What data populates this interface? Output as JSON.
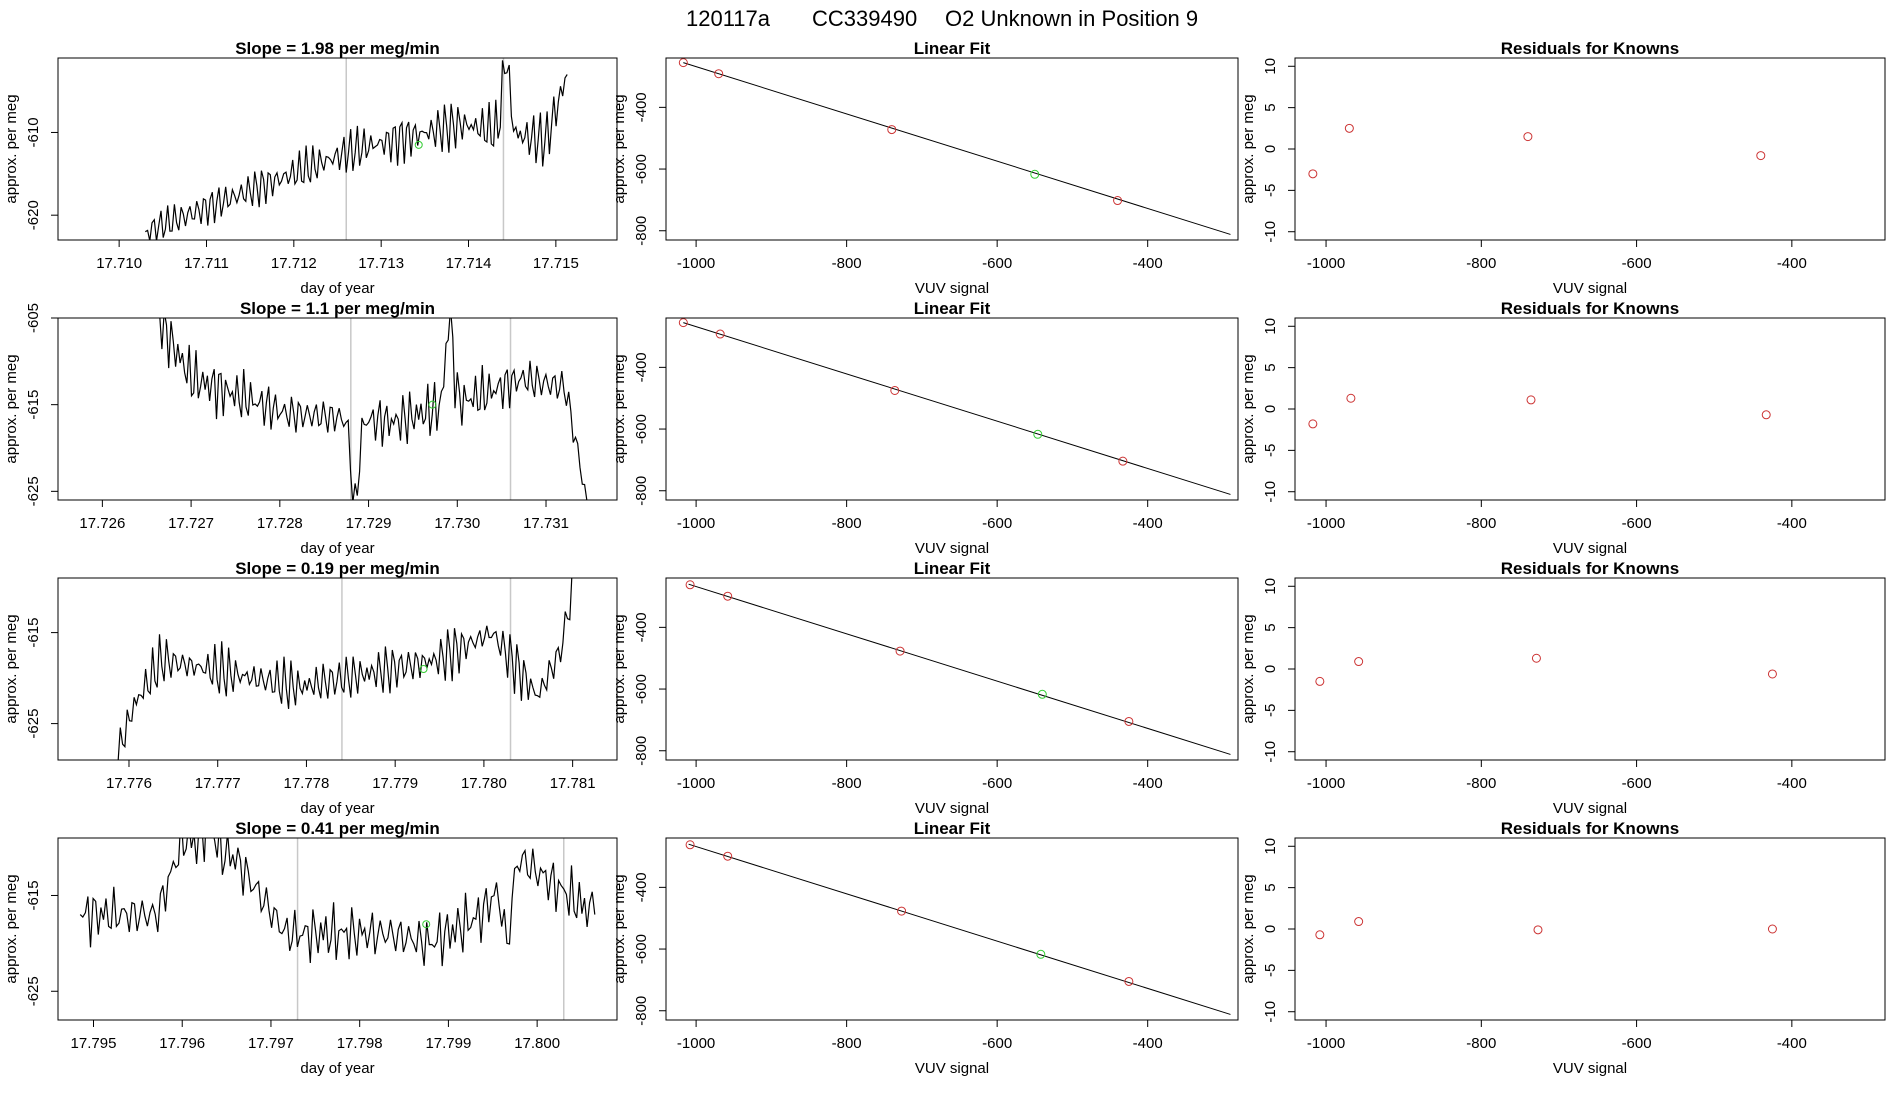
{
  "figure": {
    "run_id": "120117a",
    "cylinder": "CC339490",
    "label": "O2 Unknown in Position  9"
  },
  "colors": {
    "known_point": "#cc3333",
    "unknown_point": "#33cc33",
    "trace_line": "#000000",
    "marker_line": "#c8c8c8",
    "frame": "#000000"
  },
  "chart_data": [
    {
      "type": "line",
      "panel": "time-series",
      "row": 1,
      "title": "Slope =  1.98  per meg/min",
      "xlabel": "day of year",
      "ylabel": "approx. per meg",
      "xlim": [
        17.7093,
        17.7157
      ],
      "ylim": [
        -623,
        -601
      ],
      "xticks": [
        17.71,
        17.711,
        17.712,
        17.713,
        17.714,
        17.715
      ],
      "xtick_labels": [
        "17.710",
        "17.711",
        "17.712",
        "17.713",
        "17.714",
        "17.715"
      ],
      "yticks": [
        -610,
        -620
      ],
      "ytick_labels": [
        "-610",
        "-620"
      ],
      "markers_x": [
        17.7126,
        17.7144
      ],
      "unknown_point": {
        "x": 17.71343,
        "y": -611.5
      },
      "trace": {
        "x_start": 17.7103,
        "x_end": 17.71513,
        "y_start": -623,
        "y_end": -601,
        "n": 190,
        "base": [
          [
            0,
            -622
          ],
          [
            0.25,
            -617
          ],
          [
            0.5,
            -612
          ],
          [
            0.75,
            -609
          ],
          [
            0.95,
            -611
          ],
          [
            1,
            -603
          ]
        ],
        "amp": 3.0,
        "freq": [
          0.62,
          1.77,
          0.39
        ],
        "seed": 1.3,
        "spikes": [
          [
            0.855,
            0.035,
            9
          ]
        ]
      }
    },
    {
      "type": "line",
      "panel": "time-series",
      "row": 2,
      "title": "Slope =  1.1  per meg/min",
      "xlabel": "day of year",
      "ylabel": "approx. per meg",
      "xlim": [
        17.7255,
        17.7318
      ],
      "ylim": [
        -626,
        -605
      ],
      "xticks": [
        17.726,
        17.727,
        17.728,
        17.729,
        17.73,
        17.731
      ],
      "xtick_labels": [
        "17.726",
        "17.727",
        "17.728",
        "17.729",
        "17.730",
        "17.731"
      ],
      "yticks": [
        -605,
        -615,
        -625
      ],
      "ytick_labels": [
        "-605",
        "-615",
        "-625"
      ],
      "markers_x": [
        17.7288,
        17.7306
      ],
      "unknown_point": {
        "x": 17.72972,
        "y": -615
      },
      "trace": {
        "x_start": 17.72662,
        "x_end": 17.73146,
        "y_start": -605,
        "y_end": -626,
        "n": 190,
        "base": [
          [
            0,
            -605
          ],
          [
            0.08,
            -612
          ],
          [
            0.3,
            -616
          ],
          [
            0.55,
            -617
          ],
          [
            0.75,
            -614
          ],
          [
            0.85,
            -612
          ],
          [
            0.95,
            -613
          ],
          [
            1,
            -626
          ]
        ],
        "amp": 2.8,
        "freq": [
          0.58,
          1.69,
          0.41
        ],
        "seed": 2.1,
        "spikes": [
          [
            0.46,
            -0.02,
            -10
          ],
          [
            0.68,
            0.03,
            10
          ]
        ]
      }
    },
    {
      "type": "line",
      "panel": "time-series",
      "row": 3,
      "title": "Slope =  0.19  per meg/min",
      "xlabel": "day of year",
      "ylabel": "approx. per meg",
      "xlim": [
        17.7752,
        17.7815
      ],
      "ylim": [
        -629,
        -609
      ],
      "xticks": [
        17.776,
        17.777,
        17.778,
        17.779,
        17.78,
        17.781
      ],
      "xtick_labels": [
        "17.776",
        "17.777",
        "17.778",
        "17.779",
        "17.780",
        "17.781"
      ],
      "yticks": [
        -615,
        -625
      ],
      "ytick_labels": [
        "-615",
        "-625"
      ],
      "markers_x": [
        17.7784,
        17.7803
      ],
      "unknown_point": {
        "x": 17.77932,
        "y": -619
      },
      "trace": {
        "x_start": 17.77585,
        "x_end": 17.78102,
        "y_start": -629,
        "y_end": -609,
        "n": 200,
        "base": [
          [
            0,
            -629
          ],
          [
            0.04,
            -623
          ],
          [
            0.1,
            -618
          ],
          [
            0.4,
            -621
          ],
          [
            0.7,
            -618
          ],
          [
            0.82,
            -615
          ],
          [
            0.92,
            -622
          ],
          [
            0.97,
            -617
          ],
          [
            1,
            -609
          ]
        ],
        "amp": 2.6,
        "freq": [
          0.6,
          1.73,
          0.37
        ],
        "seed": 3.7,
        "spikes": []
      }
    },
    {
      "type": "line",
      "panel": "time-series",
      "row": 4,
      "title": "Slope =  0.41  per meg/min",
      "xlabel": "day of year",
      "ylabel": "approx. per meg",
      "xlim": [
        17.7946,
        17.8009
      ],
      "ylim": [
        -628,
        -609
      ],
      "xticks": [
        17.795,
        17.796,
        17.797,
        17.798,
        17.799,
        17.8
      ],
      "xtick_labels": [
        "17.795",
        "17.796",
        "17.797",
        "17.798",
        "17.799",
        "17.800"
      ],
      "yticks": [
        -615,
        -625
      ],
      "ytick_labels": [
        "-615",
        "-625"
      ],
      "markers_x": [
        17.7973,
        17.8003
      ],
      "unknown_point": {
        "x": 17.79875,
        "y": -618
      },
      "trace": {
        "x_start": 17.79485,
        "x_end": 17.80065,
        "y_start": -617,
        "y_end": -617,
        "n": 200,
        "base": [
          [
            0,
            -617
          ],
          [
            0.15,
            -617
          ],
          [
            0.2,
            -609
          ],
          [
            0.3,
            -611
          ],
          [
            0.4,
            -619
          ],
          [
            0.6,
            -619
          ],
          [
            0.68,
            -620
          ],
          [
            0.78,
            -617
          ],
          [
            0.85,
            -611
          ],
          [
            1,
            -617
          ]
        ],
        "amp": 2.7,
        "freq": [
          0.55,
          1.61,
          0.43
        ],
        "seed": 4.4,
        "spikes": [
          [
            0.25,
            -0.06,
            3
          ],
          [
            0.83,
            0.03,
            -7
          ]
        ]
      }
    },
    {
      "type": "scatter",
      "panel": "linear-fit",
      "row": 1,
      "title": "Linear Fit",
      "xlabel": "VUV signal",
      "ylabel": "approx. per meg",
      "xlim": [
        -1040,
        -280
      ],
      "ylim": [
        -830,
        -240
      ],
      "xticks": [
        -1000,
        -800,
        -600,
        -400
      ],
      "yticks": [
        -400,
        -600,
        -800
      ],
      "line": [
        [
          -1017,
          -255
        ],
        [
          -290,
          -812
        ]
      ],
      "known": [
        [
          -1017,
          -255
        ],
        [
          -970,
          -291
        ],
        [
          -740,
          -472
        ],
        [
          -440,
          -702
        ]
      ],
      "unknown": [
        [
          -550,
          -617
        ]
      ]
    },
    {
      "type": "scatter",
      "panel": "linear-fit",
      "row": 2,
      "title": "Linear Fit",
      "xlabel": "VUV signal",
      "ylabel": "approx. per meg",
      "xlim": [
        -1040,
        -280
      ],
      "ylim": [
        -830,
        -240
      ],
      "xticks": [
        -1000,
        -800,
        -600,
        -400
      ],
      "yticks": [
        -400,
        -600,
        -800
      ],
      "line": [
        [
          -1017,
          -255
        ],
        [
          -290,
          -812
        ]
      ],
      "known": [
        [
          -1017,
          -255
        ],
        [
          -968,
          -292
        ],
        [
          -736,
          -475
        ],
        [
          -433,
          -704
        ]
      ],
      "unknown": [
        [
          -546,
          -617
        ]
      ]
    },
    {
      "type": "scatter",
      "panel": "linear-fit",
      "row": 3,
      "title": "Linear Fit",
      "xlabel": "VUV signal",
      "ylabel": "approx. per meg",
      "xlim": [
        -1040,
        -280
      ],
      "ylim": [
        -830,
        -240
      ],
      "xticks": [
        -1000,
        -800,
        -600,
        -400
      ],
      "yticks": [
        -400,
        -600,
        -800
      ],
      "line": [
        [
          -1010,
          -260
        ],
        [
          -290,
          -812
        ]
      ],
      "known": [
        [
          -1008,
          -262
        ],
        [
          -958,
          -299
        ],
        [
          -729,
          -477
        ],
        [
          -425,
          -705
        ]
      ],
      "unknown": [
        [
          -540,
          -617
        ]
      ]
    },
    {
      "type": "scatter",
      "panel": "linear-fit",
      "row": 4,
      "title": "Linear Fit",
      "xlabel": "VUV signal",
      "ylabel": "approx. per meg",
      "xlim": [
        -1040,
        -280
      ],
      "ylim": [
        -830,
        -240
      ],
      "xticks": [
        -1000,
        -800,
        -600,
        -400
      ],
      "yticks": [
        -400,
        -600,
        -800
      ],
      "line": [
        [
          -1010,
          -260
        ],
        [
          -290,
          -812
        ]
      ],
      "known": [
        [
          -1008,
          -262
        ],
        [
          -958,
          -299
        ],
        [
          -727,
          -477
        ],
        [
          -425,
          -705
        ]
      ],
      "unknown": [
        [
          -542,
          -617
        ]
      ]
    },
    {
      "type": "scatter",
      "panel": "residuals",
      "row": 1,
      "title": "Residuals for Knowns",
      "xlabel": "VUV signal",
      "ylabel": "approx. per meg",
      "xlim": [
        -1040,
        -280
      ],
      "ylim": [
        -11,
        11
      ],
      "xticks": [
        -1000,
        -800,
        -600,
        -400
      ],
      "yticks": [
        10,
        5,
        0,
        -5,
        -10
      ],
      "points": [
        [
          -1017,
          -3.0
        ],
        [
          -970,
          2.5
        ],
        [
          -740,
          1.5
        ],
        [
          -440,
          -0.8
        ]
      ]
    },
    {
      "type": "scatter",
      "panel": "residuals",
      "row": 2,
      "title": "Residuals for Knowns",
      "xlabel": "VUV signal",
      "ylabel": "approx. per meg",
      "xlim": [
        -1040,
        -280
      ],
      "ylim": [
        -11,
        11
      ],
      "xticks": [
        -1000,
        -800,
        -600,
        -400
      ],
      "yticks": [
        10,
        5,
        0,
        -5,
        -10
      ],
      "points": [
        [
          -1017,
          -1.8
        ],
        [
          -968,
          1.3
        ],
        [
          -736,
          1.1
        ],
        [
          -433,
          -0.7
        ]
      ]
    },
    {
      "type": "scatter",
      "panel": "residuals",
      "row": 3,
      "title": "Residuals for Knowns",
      "xlabel": "VUV signal",
      "ylabel": "approx. per meg",
      "xlim": [
        -1040,
        -280
      ],
      "ylim": [
        -11,
        11
      ],
      "xticks": [
        -1000,
        -800,
        -600,
        -400
      ],
      "yticks": [
        10,
        5,
        0,
        -5,
        -10
      ],
      "points": [
        [
          -1008,
          -1.5
        ],
        [
          -958,
          0.9
        ],
        [
          -729,
          1.3
        ],
        [
          -425,
          -0.6
        ]
      ]
    },
    {
      "type": "scatter",
      "panel": "residuals",
      "row": 4,
      "title": "Residuals for Knowns",
      "xlabel": "VUV signal",
      "ylabel": "approx. per meg",
      "xlim": [
        -1040,
        -280
      ],
      "ylim": [
        -11,
        11
      ],
      "xticks": [
        -1000,
        -800,
        -600,
        -400
      ],
      "yticks": [
        10,
        5,
        0,
        -5,
        -10
      ],
      "points": [
        [
          -1008,
          -0.7
        ],
        [
          -958,
          0.9
        ],
        [
          -727,
          -0.1
        ],
        [
          -425,
          0.0
        ]
      ]
    }
  ]
}
